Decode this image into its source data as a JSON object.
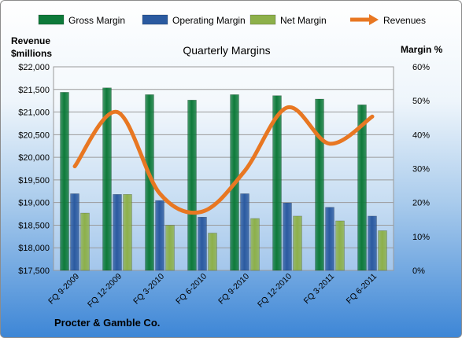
{
  "chart_data": {
    "type": "bar",
    "title": "Quarterly Margins",
    "footer": "Procter & Gamble Co.",
    "left_axis_label": [
      "Revenue",
      "$millions"
    ],
    "right_axis_label": "Margin %",
    "categories": [
      "FQ 9-2009",
      "FQ 12-2009",
      "FQ 3-2010",
      "FQ 6-2010",
      "FQ 9-2010",
      "FQ 12-2010",
      "FQ 3-2011",
      "FQ 6-2011"
    ],
    "left_ticks": [
      "$17,500",
      "$18,000",
      "$18,500",
      "$19,000",
      "$19,500",
      "$20,000",
      "$20,500",
      "$21,000",
      "$21,500",
      "$22,000"
    ],
    "right_ticks": [
      "0%",
      "10%",
      "20%",
      "30%",
      "40%",
      "50%",
      "60%"
    ],
    "left_ylim": [
      17500,
      22000
    ],
    "right_ylim": [
      0,
      60
    ],
    "grid": true,
    "legend_position": "top",
    "series": [
      {
        "name": "Gross Margin",
        "type": "bar",
        "axis": "right",
        "color": "#0e7a3a",
        "values": [
          52.5,
          53.8,
          51.8,
          50.2,
          51.8,
          51.5,
          50.5,
          48.8
        ]
      },
      {
        "name": "Operating Margin",
        "type": "bar",
        "axis": "right",
        "color": "#2b5aa0",
        "values": [
          22.6,
          22.4,
          20.6,
          15.7,
          22.6,
          19.9,
          18.6,
          16.0
        ]
      },
      {
        "name": "Net Margin",
        "type": "bar",
        "axis": "right",
        "color": "#8db04a",
        "values": [
          16.9,
          22.4,
          13.3,
          11.0,
          15.3,
          16.0,
          14.6,
          11.7
        ]
      },
      {
        "name": "Revenues",
        "type": "line",
        "axis": "left",
        "color": "#e87722",
        "values": [
          19800,
          21000,
          19200,
          18800,
          19700,
          21100,
          20300,
          20900
        ]
      }
    ]
  }
}
